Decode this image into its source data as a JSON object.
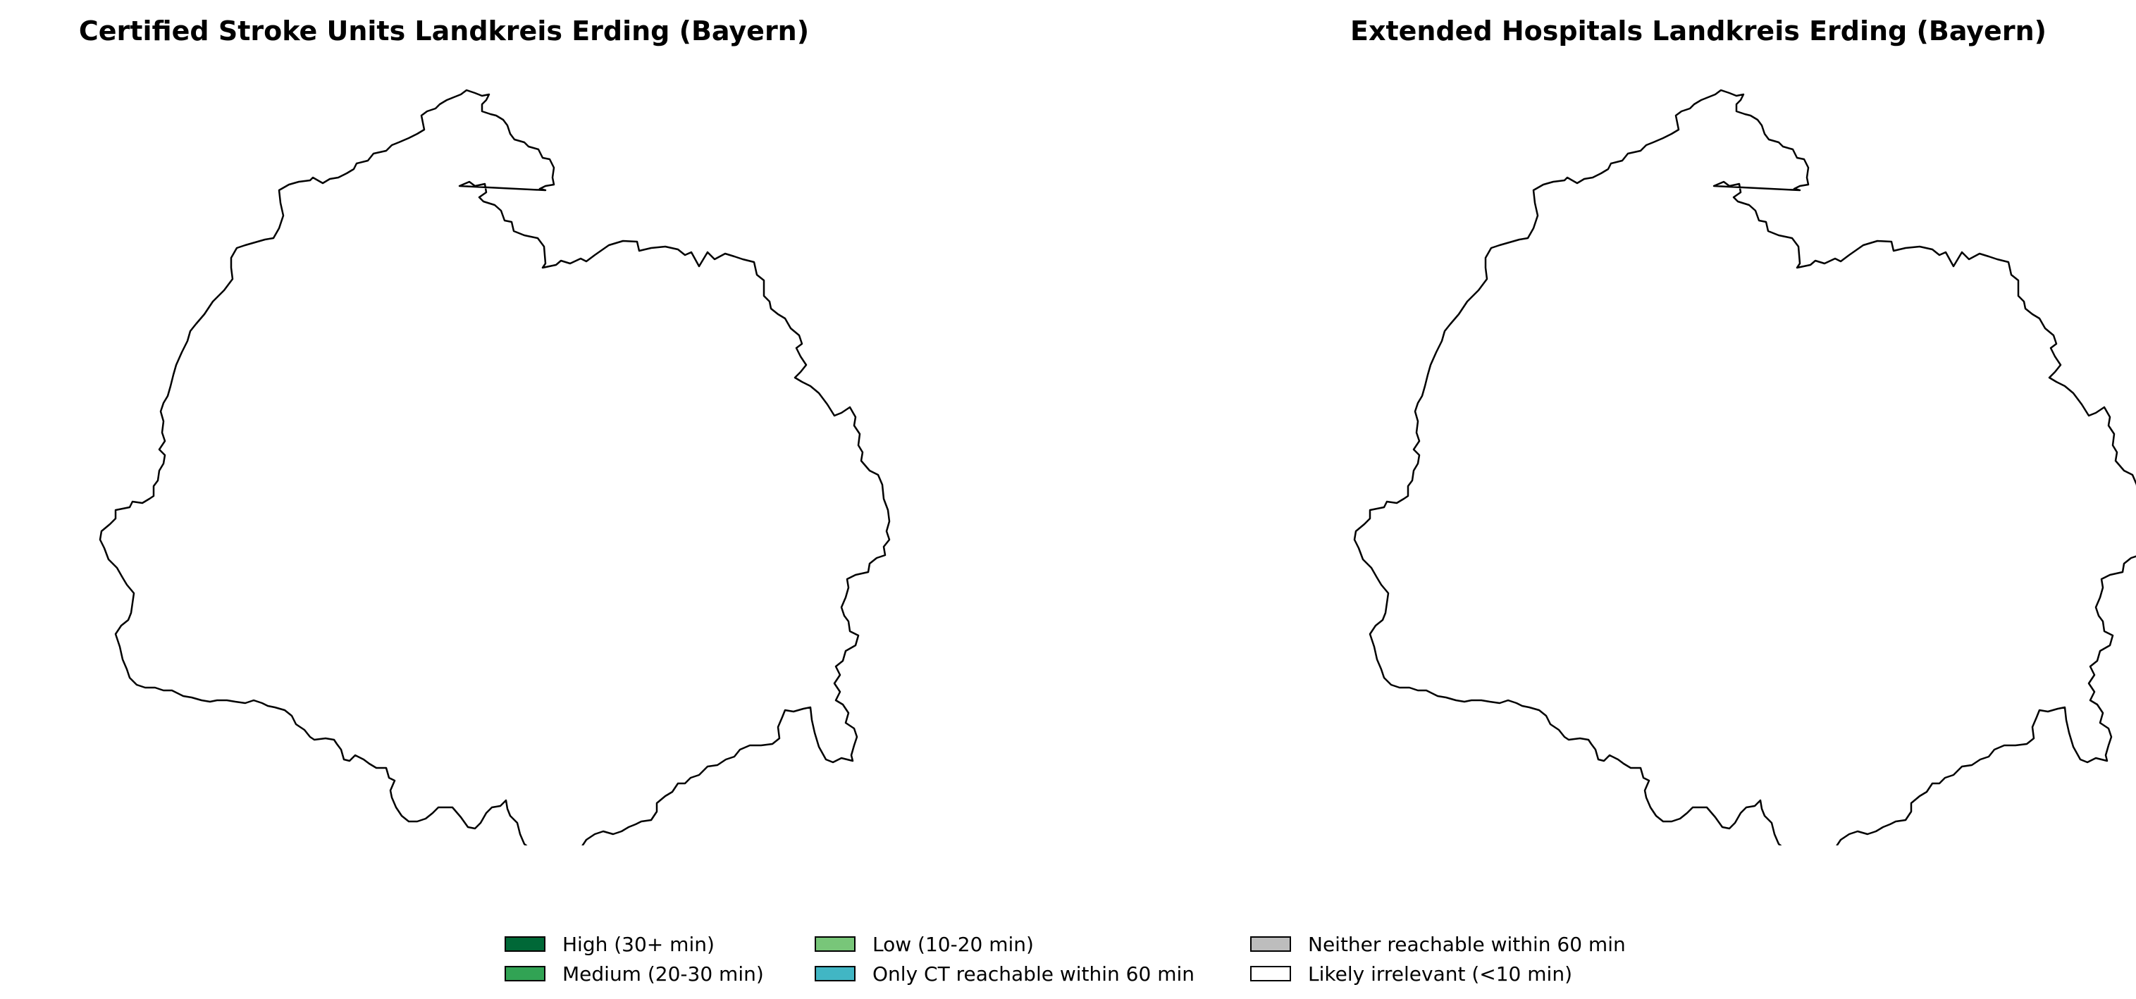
{
  "maps": [
    {
      "title": "Certified Stroke Units Landkreis Erding (Bayern)",
      "region": "Landkreis Erding"
    },
    {
      "title": "Extended Hospitals Landkreis Erding (Bayern)",
      "region": "Landkreis Erding"
    }
  ],
  "legend": {
    "items": [
      {
        "label": "High (30+ min)",
        "color": "#006837"
      },
      {
        "label": "Medium (20-30 min)",
        "color": "#31a354"
      },
      {
        "label": "Low (10-20 min)",
        "color": "#78c679"
      },
      {
        "label": "Only CT reachable within 60 min",
        "color": "#41b6c4"
      },
      {
        "label": "Neither reachable within 60 min",
        "color": "#bdbdbd"
      },
      {
        "label": "Likely irrelevant (<10 min)",
        "color": "#ffffff"
      }
    ]
  },
  "colors": {
    "boundary": "#000000",
    "region_fill": "#ffffff"
  }
}
